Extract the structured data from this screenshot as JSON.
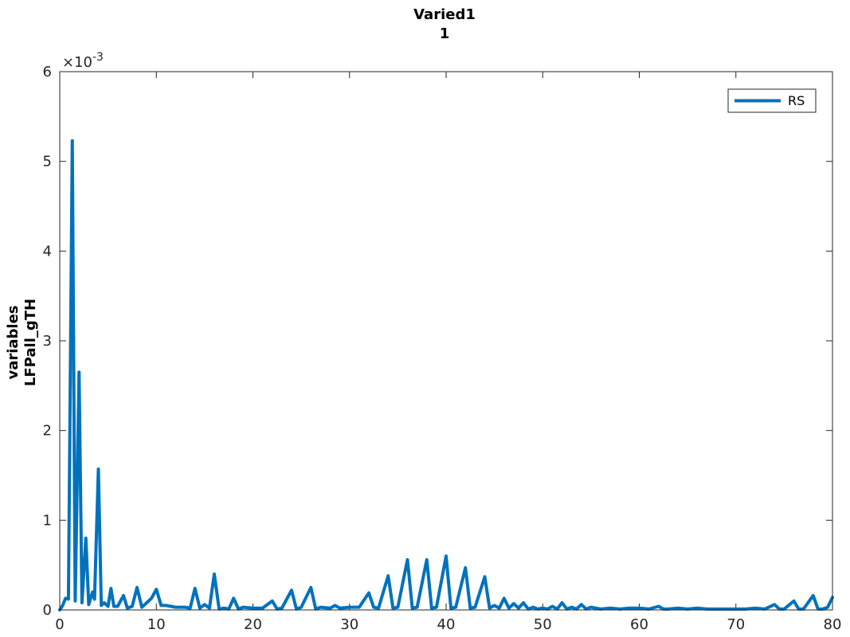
{
  "chart_data": {
    "type": "line",
    "title": [
      "Varied1",
      "1"
    ],
    "xlabel": "",
    "ylabel": [
      "variables",
      "LFPall_gTH"
    ],
    "xlim": [
      0,
      80
    ],
    "ylim": [
      0,
      0.006
    ],
    "x_ticks": [
      0,
      10,
      20,
      30,
      40,
      50,
      60,
      70,
      80
    ],
    "y_ticks": [
      0,
      0.001,
      0.002,
      0.003,
      0.004,
      0.005,
      0.006
    ],
    "y_tick_labels": [
      "0",
      "1",
      "2",
      "3",
      "4",
      "5",
      "6"
    ],
    "y_exponent_base": "×10",
    "y_exponent_power": "-3",
    "grid": false,
    "legend": {
      "position": "top-right",
      "entries": [
        "RS"
      ]
    },
    "series": [
      {
        "name": "RS",
        "color": "#0072BD",
        "points": [
          [
            0,
            0.0
          ],
          [
            0.3,
            5e-05
          ],
          [
            0.6,
            0.00013
          ],
          [
            0.9,
            0.00012
          ],
          [
            1.3,
            0.00523
          ],
          [
            1.6,
            0.0001
          ],
          [
            2.0,
            0.00265
          ],
          [
            2.3,
            8e-05
          ],
          [
            2.7,
            0.0008
          ],
          [
            3.0,
            6e-05
          ],
          [
            3.4,
            0.0002
          ],
          [
            3.6,
            0.00012
          ],
          [
            4.0,
            0.00157
          ],
          [
            4.3,
            5e-05
          ],
          [
            4.6,
            8e-05
          ],
          [
            5.0,
            4e-05
          ],
          [
            5.3,
            0.00024
          ],
          [
            5.6,
            4e-05
          ],
          [
            6.0,
            4e-05
          ],
          [
            6.6,
            0.00016
          ],
          [
            7.0,
            2e-05
          ],
          [
            7.5,
            4e-05
          ],
          [
            8.0,
            0.00025
          ],
          [
            8.5,
            3e-05
          ],
          [
            9.0,
            8e-05
          ],
          [
            9.5,
            0.00013
          ],
          [
            10.0,
            0.00023
          ],
          [
            10.5,
            5e-05
          ],
          [
            11.0,
            5e-05
          ],
          [
            12.0,
            3e-05
          ],
          [
            13.0,
            3e-05
          ],
          [
            13.5,
            2e-05
          ],
          [
            14.0,
            0.00024
          ],
          [
            14.5,
            2e-05
          ],
          [
            15.0,
            6e-05
          ],
          [
            15.5,
            2e-05
          ],
          [
            16.0,
            0.0004
          ],
          [
            16.5,
            1e-05
          ],
          [
            17.0,
            2e-05
          ],
          [
            17.5,
            1e-05
          ],
          [
            18.0,
            0.00013
          ],
          [
            18.5,
            1e-05
          ],
          [
            19.0,
            3e-05
          ],
          [
            20.0,
            2e-05
          ],
          [
            21.0,
            2e-05
          ],
          [
            22.0,
            0.0001
          ],
          [
            22.5,
            1e-05
          ],
          [
            23.0,
            2e-05
          ],
          [
            24.0,
            0.00022
          ],
          [
            24.5,
            1e-05
          ],
          [
            25.0,
            3e-05
          ],
          [
            26.0,
            0.00025
          ],
          [
            26.5,
            1e-05
          ],
          [
            27.0,
            3e-05
          ],
          [
            28.0,
            2e-05
          ],
          [
            28.5,
            5e-05
          ],
          [
            29.0,
            2e-05
          ],
          [
            30.0,
            3e-05
          ],
          [
            31.0,
            3e-05
          ],
          [
            32.0,
            0.00019
          ],
          [
            32.5,
            3e-05
          ],
          [
            33.0,
            2e-05
          ],
          [
            34.0,
            0.00038
          ],
          [
            34.5,
            2e-05
          ],
          [
            35.0,
            3e-05
          ],
          [
            36.0,
            0.00056
          ],
          [
            36.5,
            2e-05
          ],
          [
            37.0,
            3e-05
          ],
          [
            38.0,
            0.00056
          ],
          [
            38.5,
            2e-05
          ],
          [
            39.0,
            3e-05
          ],
          [
            40.0,
            0.0006
          ],
          [
            40.5,
            2e-05
          ],
          [
            41.0,
            3e-05
          ],
          [
            42.0,
            0.00047
          ],
          [
            42.5,
            2e-05
          ],
          [
            43.0,
            3e-05
          ],
          [
            44.0,
            0.00037
          ],
          [
            44.5,
            2e-05
          ],
          [
            45.0,
            5e-05
          ],
          [
            45.5,
            2e-05
          ],
          [
            46.0,
            0.00013
          ],
          [
            46.5,
            2e-05
          ],
          [
            47.0,
            7e-05
          ],
          [
            47.5,
            2e-05
          ],
          [
            48.0,
            8e-05
          ],
          [
            48.5,
            1e-05
          ],
          [
            49.0,
            3e-05
          ],
          [
            49.5,
            1e-05
          ],
          [
            50.0,
            2e-05
          ],
          [
            50.5,
            1e-05
          ],
          [
            51.0,
            4e-05
          ],
          [
            51.5,
            1e-05
          ],
          [
            52.0,
            8e-05
          ],
          [
            52.5,
            1e-05
          ],
          [
            53.0,
            3e-05
          ],
          [
            53.5,
            1e-05
          ],
          [
            54.0,
            6e-05
          ],
          [
            54.5,
            1e-05
          ],
          [
            55.0,
            3e-05
          ],
          [
            56.0,
            1e-05
          ],
          [
            57.0,
            2e-05
          ],
          [
            58.0,
            1e-05
          ],
          [
            59.0,
            2e-05
          ],
          [
            60.0,
            2e-05
          ],
          [
            61.0,
            1e-05
          ],
          [
            62.0,
            4e-05
          ],
          [
            62.5,
            1e-05
          ],
          [
            63.0,
            1e-05
          ],
          [
            64.0,
            2e-05
          ],
          [
            65.0,
            1e-05
          ],
          [
            66.0,
            2e-05
          ],
          [
            67.0,
            1e-05
          ],
          [
            68.0,
            1e-05
          ],
          [
            69.0,
            1e-05
          ],
          [
            70.0,
            1e-05
          ],
          [
            71.0,
            1e-05
          ],
          [
            72.0,
            2e-05
          ],
          [
            73.0,
            1e-05
          ],
          [
            74.0,
            6e-05
          ],
          [
            74.5,
            1e-05
          ],
          [
            75.0,
            1e-05
          ],
          [
            76.0,
            0.0001
          ],
          [
            76.5,
            1e-05
          ],
          [
            77.0,
            1e-05
          ],
          [
            78.0,
            0.00016
          ],
          [
            78.5,
            1e-05
          ],
          [
            79.0,
            1e-05
          ],
          [
            79.5,
            3e-05
          ],
          [
            80.0,
            0.00014
          ]
        ]
      }
    ]
  }
}
